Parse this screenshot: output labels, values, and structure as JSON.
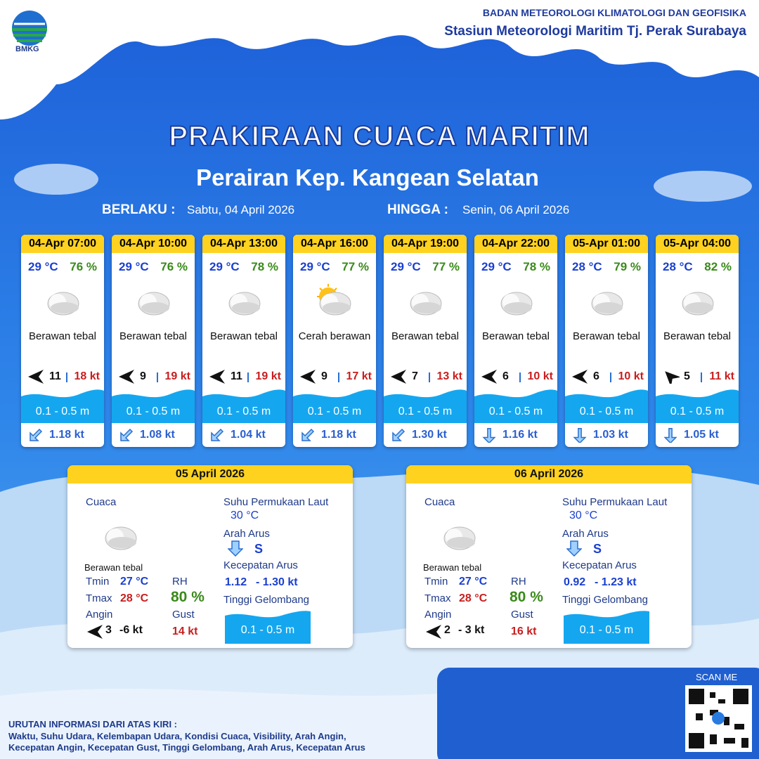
{
  "header": {
    "logo": "BMKG",
    "org": "BADAN METEOROLOGI KLIMATOLOGI DAN GEOFISIKA",
    "station": "Stasiun Meteorologi Maritim Tj. Perak Surabaya"
  },
  "title": "PRAKIRAAN CUACA MARITIM",
  "subtitle": "Perairan Kep. Kangean Selatan",
  "validity": {
    "from_label": "BERLAKU :",
    "from": "Sabtu, 04 April 2026",
    "to_label": "HINGGA :",
    "to": "Senin, 06 April 2026"
  },
  "cards": [
    {
      "time": "04-Apr 07:00",
      "temp": "29 °C",
      "rh": "76 %",
      "icon": "cloud",
      "weather": "Berawan tebal",
      "wind_icon": "left",
      "wind": "11",
      "gust": "18 kt",
      "wave": "0.1 - 0.5 m",
      "current_icon": "down-left",
      "current": "1.18 kt"
    },
    {
      "time": "04-Apr 10:00",
      "temp": "29 °C",
      "rh": "76 %",
      "icon": "cloud",
      "weather": "Berawan tebal",
      "wind_icon": "left",
      "wind": "9",
      "gust": "19 kt",
      "wave": "0.1 - 0.5 m",
      "current_icon": "down-left",
      "current": "1.08 kt"
    },
    {
      "time": "04-Apr 13:00",
      "temp": "29 °C",
      "rh": "78 %",
      "icon": "cloud",
      "weather": "Berawan tebal",
      "wind_icon": "left",
      "wind": "11",
      "gust": "19 kt",
      "wave": "0.1 - 0.5 m",
      "current_icon": "down-left",
      "current": "1.04 kt"
    },
    {
      "time": "04-Apr 16:00",
      "temp": "29 °C",
      "rh": "77 %",
      "icon": "sun-cloud",
      "weather": "Cerah berawan",
      "wind_icon": "left",
      "wind": "9",
      "gust": "17 kt",
      "wave": "0.1 - 0.5 m",
      "current_icon": "down-left",
      "current": "1.18 kt"
    },
    {
      "time": "04-Apr 19:00",
      "temp": "29 °C",
      "rh": "77 %",
      "icon": "cloud",
      "weather": "Berawan tebal",
      "wind_icon": "left",
      "wind": "7",
      "gust": "13 kt",
      "wave": "0.1 - 0.5 m",
      "current_icon": "down-left",
      "current": "1.30 kt"
    },
    {
      "time": "04-Apr 22:00",
      "temp": "29 °C",
      "rh": "78 %",
      "icon": "cloud",
      "weather": "Berawan tebal",
      "wind_icon": "left",
      "wind": "6",
      "gust": "10 kt",
      "wave": "0.1 - 0.5 m",
      "current_icon": "down",
      "current": "1.16 kt"
    },
    {
      "time": "05-Apr 01:00",
      "temp": "28 °C",
      "rh": "79 %",
      "icon": "cloud",
      "weather": "Berawan tebal",
      "wind_icon": "left",
      "wind": "6",
      "gust": "10 kt",
      "wave": "0.1 - 0.5 m",
      "current_icon": "down",
      "current": "1.03 kt"
    },
    {
      "time": "05-Apr 04:00",
      "temp": "28 °C",
      "rh": "82 %",
      "icon": "cloud",
      "weather": "Berawan tebal",
      "wind_icon": "up-left",
      "wind": "5",
      "gust": "11 kt",
      "wave": "0.1 - 0.5 m",
      "current_icon": "down",
      "current": "1.05 kt"
    }
  ],
  "labels": {
    "weather": "Cuaca",
    "tmin": "Tmin",
    "tmax": "Tmax",
    "wind": "Angin",
    "rh": "RH",
    "gust": "Gust",
    "sst": "Suhu Permukaan Laut",
    "current_dir": "Arah Arus",
    "current_speed": "Kecepatan Arus",
    "wave": "Tinggi Gelombang"
  },
  "days": [
    {
      "date": "05 April 2026",
      "weather": "Berawan tebal",
      "tmin": "27 °C",
      "tmax": "28 °C",
      "wind_from": "3",
      "wind_to": "-6 kt",
      "rh": "80 %",
      "gust": "14 kt",
      "sst": "30 °C",
      "current_dir": "S",
      "current_from": "1.12",
      "current_to": "- 1.30 kt",
      "wave": "0.1 - 0.5 m"
    },
    {
      "date": "06 April 2026",
      "weather": "Berawan tebal",
      "tmin": "27 °C",
      "tmax": "28 °C",
      "wind_from": "2",
      "wind_to": "- 3 kt",
      "rh": "80 %",
      "gust": "16 kt",
      "sst": "30 °C",
      "current_dir": "S",
      "current_from": "0.92",
      "current_to": "- 1.23 kt",
      "wave": "0.1 - 0.5 m"
    }
  ],
  "footer": {
    "heading": "URUTAN INFORMASI DARI ATAS KIRI :",
    "line1": "Waktu, Suhu Udara, Kelembapan Udara, Kondisi Cuaca, Visibility, Arah Angin,",
    "line2": "Kecepatan Angin, Kecepatan Gust, Tinggi Gelombang, Arah Arus, Kecepatan Arus"
  },
  "qr": {
    "label": "SCAN ME"
  }
}
